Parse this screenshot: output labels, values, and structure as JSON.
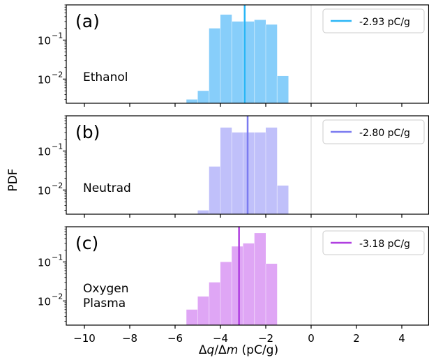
{
  "figure": {
    "ylabel": "PDF",
    "xlabel_parts": [
      "Δ",
      "q",
      "/Δ",
      "m",
      " (pC/g)"
    ]
  },
  "chart_data": [
    {
      "type": "bar",
      "panel_tag": "(a)",
      "annotation": "Ethanol",
      "color": "#87cefa",
      "line_color": "#29b6f6",
      "xlim": [
        -10.8,
        5.2
      ],
      "ylim_log": [
        0.0024,
        0.8
      ],
      "yscale": "log",
      "legend": {
        "label": "-2.93 pC/g",
        "placement": "top-right"
      },
      "vline_x": -2.93,
      "reference_line_x": 0,
      "bin_edges": [
        -5.5,
        -5.0,
        -4.5,
        -4.0,
        -3.5,
        -3.0,
        -2.5,
        -2.0,
        -1.5,
        -1.0
      ],
      "values": [
        0.003,
        0.005,
        0.2,
        0.45,
        0.3,
        0.3,
        0.33,
        0.25,
        0.012
      ]
    },
    {
      "type": "bar",
      "panel_tag": "(b)",
      "annotation": "Neutrad",
      "color": "#c0c0fa",
      "line_color": "#7b7bf0",
      "xlim": [
        -10.8,
        5.2
      ],
      "ylim_log": [
        0.0024,
        0.8
      ],
      "yscale": "log",
      "legend": {
        "label": "-2.80 pC/g",
        "placement": "top-right"
      },
      "vline_x": -2.8,
      "reference_line_x": 0,
      "bin_edges": [
        -5.0,
        -4.5,
        -4.0,
        -3.5,
        -3.0,
        -2.5,
        -2.0,
        -1.5,
        -1.0
      ],
      "values": [
        0.003,
        0.04,
        0.4,
        0.3,
        0.3,
        0.3,
        0.4,
        0.013
      ]
    },
    {
      "type": "bar",
      "panel_tag": "(c)",
      "annotation_lines": [
        "Oxygen",
        "Plasma"
      ],
      "color": "#dfa6f5",
      "line_color": "#b03fe0",
      "xlim": [
        -10.8,
        5.2
      ],
      "ylim_log": [
        0.0024,
        0.8
      ],
      "yscale": "log",
      "legend": {
        "label": "-3.18 pC/g",
        "placement": "top-right"
      },
      "vline_x": -3.18,
      "reference_line_x": 0,
      "bin_edges": [
        -5.5,
        -5.0,
        -4.5,
        -4.0,
        -3.5,
        -3.0,
        -2.5,
        -2.0,
        -1.5
      ],
      "values": [
        0.006,
        0.013,
        0.03,
        0.1,
        0.25,
        0.3,
        0.55,
        0.09
      ],
      "xlabel": "Δq/Δm (pC/g)",
      "xticks": [
        -10,
        -8,
        -6,
        -4,
        -2,
        0,
        2,
        4
      ],
      "xtick_labels": [
        "−10",
        "−8",
        "−6",
        "−4",
        "−2",
        "0",
        "2",
        "4"
      ]
    }
  ],
  "yticks": {
    "values": [
      0.1,
      0.01
    ],
    "bases": [
      "10",
      "10"
    ],
    "exponents": [
      "−1",
      "−2"
    ]
  }
}
